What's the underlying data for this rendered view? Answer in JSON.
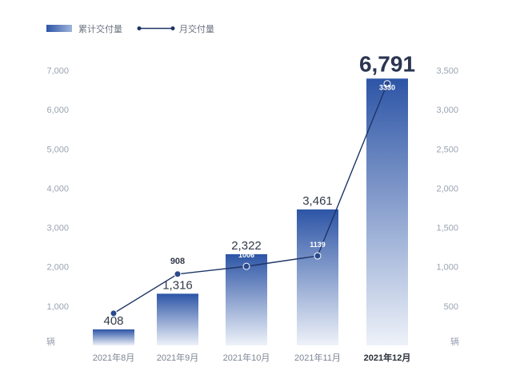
{
  "legend": {
    "bar_label": "累计交付量",
    "line_label": "月交付量"
  },
  "colors": {
    "bar_top": "#2d55a6",
    "bar_bottom": "#eef2f9",
    "line": "#1f3566",
    "point": "#2a4a8c",
    "tick_text": "#9aa3b2"
  },
  "chart_data": {
    "type": "bar",
    "categories": [
      "2021年8月",
      "2021年9月",
      "2021年10月",
      "2021年11月",
      "2021年12月"
    ],
    "series": [
      {
        "name": "累计交付量",
        "type": "bar",
        "axis": "left",
        "values": [
          408,
          1316,
          2322,
          3461,
          6791
        ],
        "labels": [
          "408",
          "1,316",
          "2,322",
          "3,461",
          "6,791"
        ]
      },
      {
        "name": "月交付量",
        "type": "line",
        "axis": "right",
        "values": [
          408,
          908,
          1006,
          1139,
          3330
        ],
        "labels": [
          "",
          "908",
          "1006",
          "1139",
          "3330"
        ]
      }
    ],
    "y_left": {
      "ticks": [
        "1,000",
        "2,000",
        "3,000",
        "4,000",
        "5,000",
        "6,000",
        "7,000"
      ],
      "unit": "辆",
      "ylim": [
        0,
        7000
      ]
    },
    "y_right": {
      "ticks": [
        "500",
        "1,000",
        "1,500",
        "2,000",
        "2,500",
        "3,000",
        "3,500"
      ],
      "unit": "辆",
      "ylim": [
        0,
        3500
      ]
    },
    "grid": false,
    "legend_position": "top-left",
    "highlight_category": "2021年12月"
  }
}
